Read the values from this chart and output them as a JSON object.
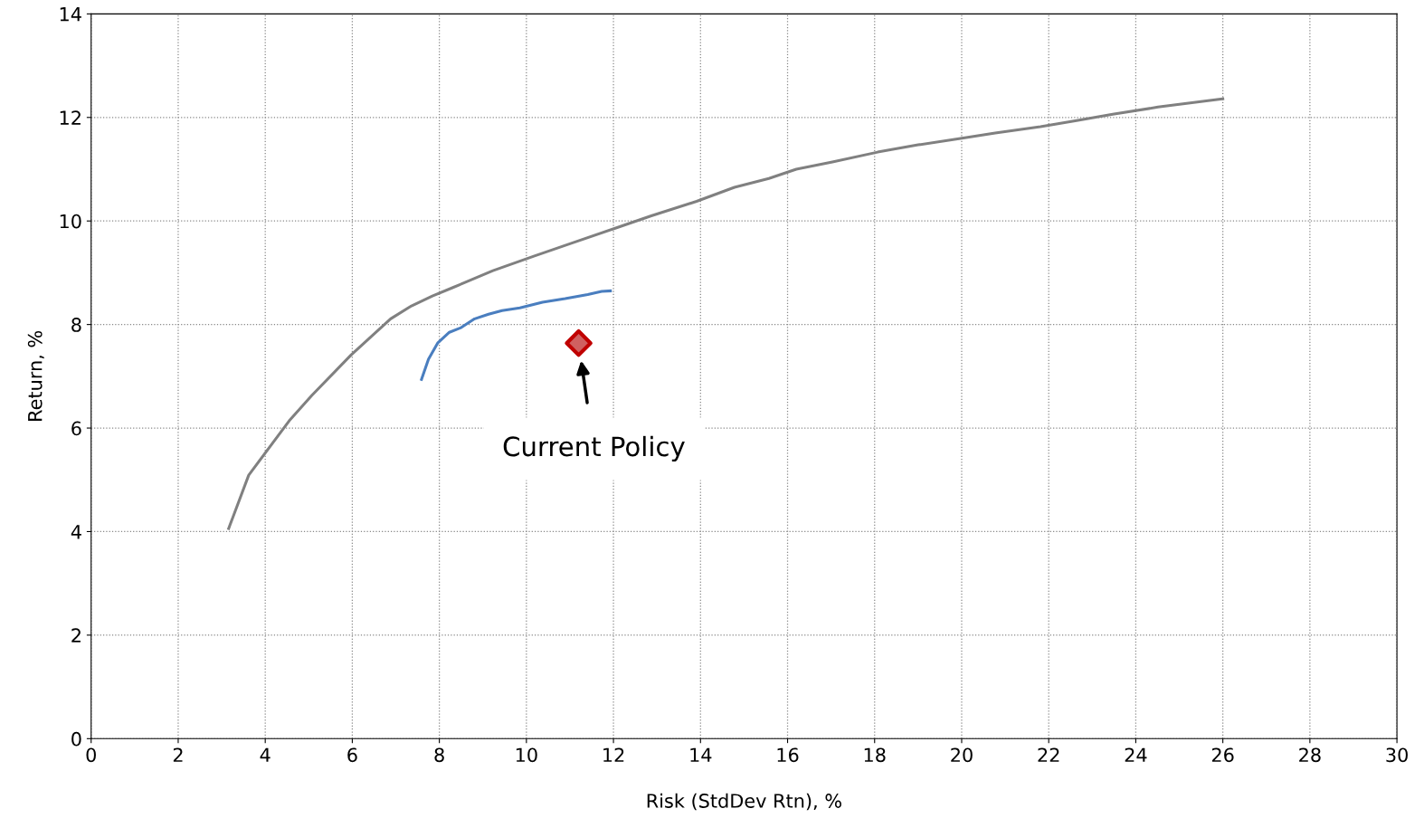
{
  "chart_data": {
    "type": "line",
    "xlabel": "Risk (StdDev Rtn), %",
    "ylabel": "Return, %",
    "xlim": [
      0,
      30
    ],
    "xticks": [
      0,
      2,
      4,
      6,
      8,
      10,
      12,
      14,
      16,
      18,
      20,
      22,
      24,
      26,
      28,
      30
    ],
    "ylim": [
      0,
      14
    ],
    "yticks": [
      0,
      2,
      4,
      6,
      8,
      10,
      12,
      14
    ],
    "grid": true,
    "line_style": "solid",
    "series": [
      {
        "color": "#808080",
        "x": [
          3.16,
          3.62,
          4.55,
          5.07,
          5.97,
          6.88,
          7.36,
          7.84,
          8.3,
          9.23,
          10.17,
          11.0,
          12.04,
          12.87,
          13.91,
          14.78,
          15.57,
          16.2,
          17.03,
          18.07,
          19.0,
          19.94,
          20.77,
          21.81,
          22.64,
          23.47,
          24.51,
          26.0
        ],
        "values": [
          4.06,
          5.09,
          6.14,
          6.63,
          7.41,
          8.11,
          8.36,
          8.55,
          8.71,
          9.04,
          9.32,
          9.56,
          9.86,
          10.1,
          10.38,
          10.65,
          10.82,
          11.0,
          11.14,
          11.33,
          11.47,
          11.59,
          11.7,
          11.82,
          11.94,
          12.06,
          12.2,
          12.36
        ]
      },
      {
        "color": "#4a7ebf",
        "x": [
          7.59,
          7.75,
          7.96,
          8.23,
          8.5,
          8.81,
          9.13,
          9.44,
          9.85,
          10.37,
          10.89,
          11.41,
          11.73,
          11.93
        ],
        "values": [
          6.94,
          7.33,
          7.64,
          7.85,
          7.94,
          8.11,
          8.2,
          8.27,
          8.32,
          8.43,
          8.5,
          8.58,
          8.64,
          8.65
        ]
      },
      {
        "type": "scatter",
        "color": "#c00000",
        "marker": "diamond",
        "x": [
          11.2
        ],
        "values": [
          7.64
        ]
      }
    ],
    "annotations": [
      "Current Policy"
    ]
  }
}
